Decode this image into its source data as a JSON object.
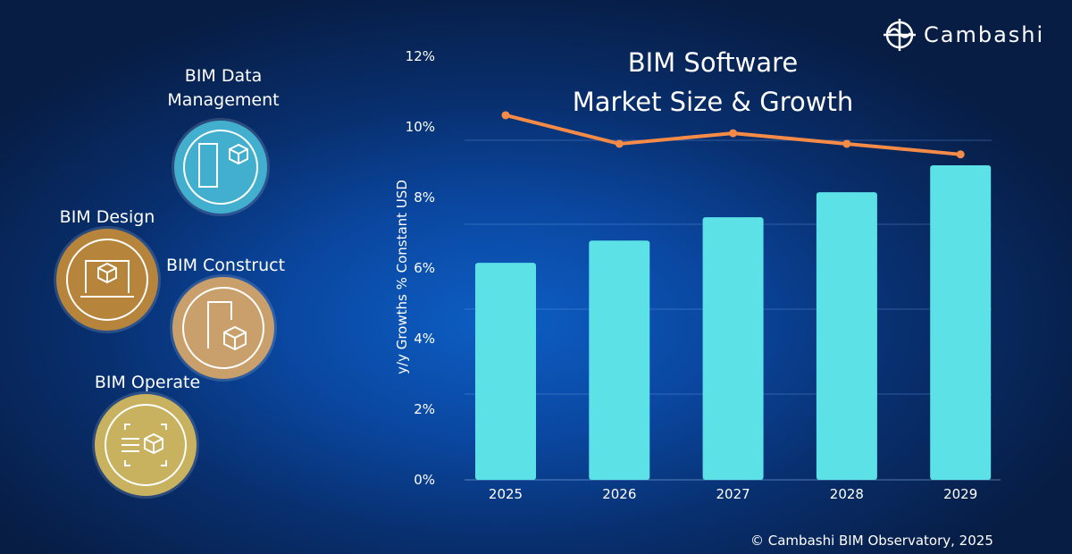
{
  "logo": {
    "text": "Cambashi"
  },
  "categories": [
    {
      "label": "BIM Data Management",
      "color": "#42afcf",
      "icon": "building-cube-icon"
    },
    {
      "label": "BIM Design",
      "color": "#b7843c",
      "icon": "laptop-cube-icon"
    },
    {
      "label": "BIM Construct",
      "color": "#c9a06c",
      "icon": "construction-cube-icon"
    },
    {
      "label": "BIM Operate",
      "color": "#c8b25f",
      "icon": "network-cube-icon"
    }
  ],
  "footer": {
    "copyright": "© Cambashi BIM Observatory, 2025"
  },
  "chart_data": {
    "type": "bar",
    "title": "BIM Software\nMarket Size & Growth",
    "title_lines": [
      "BIM Software",
      "Market Size & Growth"
    ],
    "ylabel": "y/y Growths % Constant USD",
    "ylim": [
      0,
      12
    ],
    "yticks": [
      "0%",
      "2%",
      "4%",
      "6%",
      "8%",
      "10%",
      "12%"
    ],
    "categories": [
      "2025",
      "2026",
      "2027",
      "2028",
      "2029"
    ],
    "series": [
      {
        "type": "bar",
        "values": [
          6.15,
          6.78,
          7.44,
          8.15,
          8.91
        ],
        "color": "#5ce1e6"
      },
      {
        "type": "line",
        "values": [
          10.33,
          9.52,
          9.82,
          9.52,
          9.22
        ],
        "color": "#f68b48"
      }
    ],
    "grid": true,
    "legend": "none"
  }
}
